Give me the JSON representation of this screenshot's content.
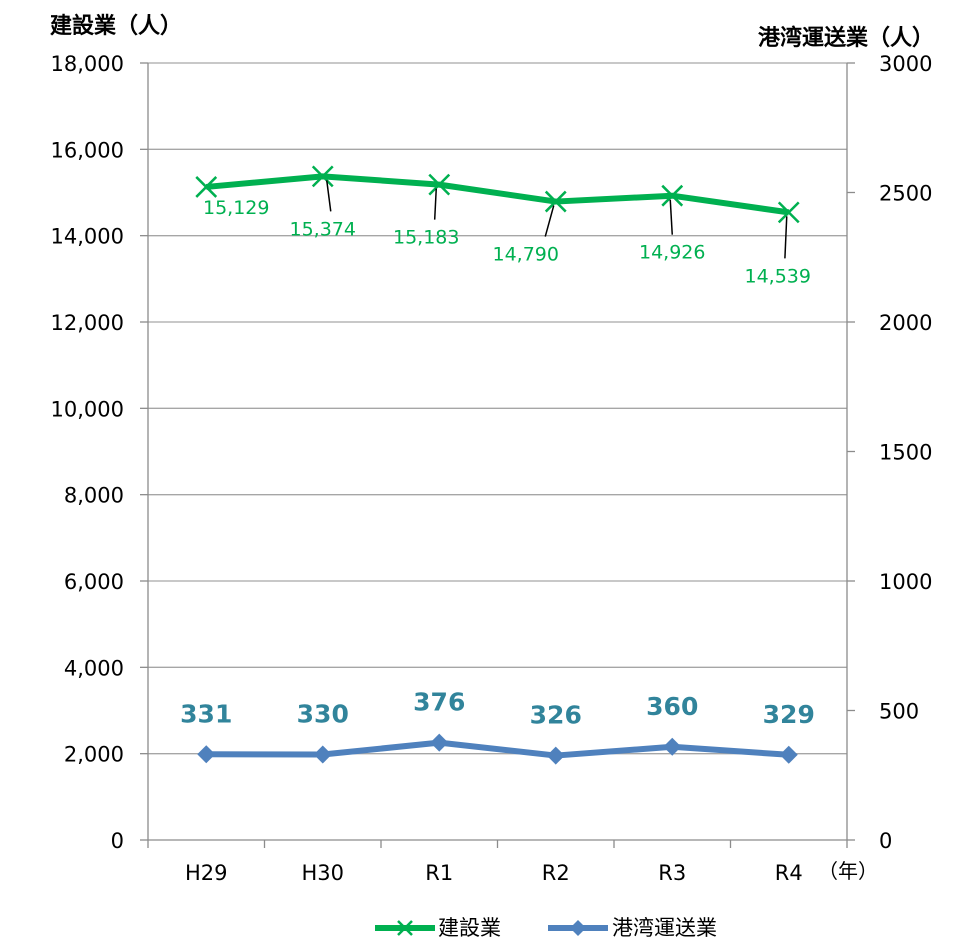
{
  "chart_data": {
    "type": "line",
    "categories": [
      "H29",
      "H30",
      "R1",
      "R2",
      "R3",
      "R4"
    ],
    "x_unit": "（年）",
    "y_left": {
      "label": "建設業（人）",
      "ylim": [
        0,
        18000
      ],
      "ticks": [
        0,
        2000,
        4000,
        6000,
        8000,
        10000,
        12000,
        14000,
        16000,
        18000
      ],
      "tick_labels": [
        "0",
        "2,000",
        "4,000",
        "6,000",
        "8,000",
        "10,000",
        "12,000",
        "14,000",
        "16,000",
        "18,000"
      ]
    },
    "y_right": {
      "label": "港湾運送業（人）",
      "ylim": [
        0,
        3000
      ],
      "ticks": [
        0,
        500,
        1000,
        1500,
        2000,
        2500,
        3000
      ],
      "tick_labels": [
        "0",
        "500",
        "1000",
        "1500",
        "2000",
        "2500",
        "3000"
      ]
    },
    "grid": true,
    "legend_position": "bottom",
    "series": [
      {
        "name": "建設業",
        "axis": "left",
        "color": "#00b050",
        "marker": "x",
        "values": [
          15129,
          15374,
          15183,
          14790,
          14926,
          14539
        ],
        "labels": [
          "15,129",
          "15,374",
          "15,183",
          "14,790",
          "14,926",
          "14,539"
        ]
      },
      {
        "name": "港湾運送業",
        "axis": "right",
        "color": "#4f81bd",
        "label_color": "#31849b",
        "marker": "diamond",
        "values": [
          331,
          330,
          376,
          326,
          360,
          329
        ],
        "labels": [
          "331",
          "330",
          "376",
          "326",
          "360",
          "329"
        ]
      }
    ]
  }
}
